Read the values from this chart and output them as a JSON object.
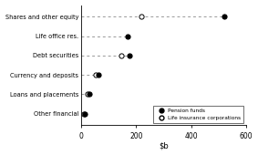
{
  "categories": [
    "Shares and other equity",
    "Life office res.",
    "Debt securities",
    "Currency and deposits",
    "Loans and placements",
    "Other financial"
  ],
  "pension_funds": [
    520,
    170,
    175,
    65,
    30,
    15
  ],
  "life_insurance": [
    220,
    null,
    145,
    55,
    25,
    12
  ],
  "xlim": [
    0,
    600
  ],
  "xticks": [
    0,
    200,
    400,
    600
  ],
  "legend_labels": [
    "Pension funds",
    "Life insurance corporations"
  ],
  "dot_color_filled": "#000000",
  "dot_color_open": "#ffffff",
  "line_color": "#999999",
  "background_color": "#ffffff"
}
